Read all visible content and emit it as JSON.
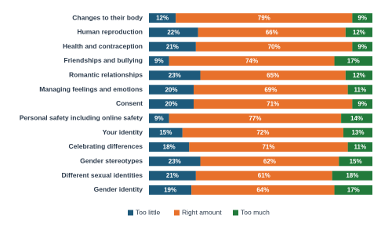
{
  "chart_data": {
    "type": "stacked-barh",
    "categories": [
      "Changes to their body",
      "Human reproduction",
      "Health and contraception",
      "Friendships and bullying",
      "Romantic relationships",
      "Managing feelings and emotions",
      "Consent",
      "Personal safety including online safety",
      "Your identity",
      "Celebrating differences",
      "Gender stereotypes",
      "Different sexual identities",
      "Gender identity"
    ],
    "series": [
      {
        "name": "Too little",
        "color": "#1e5a7b",
        "values": [
          12,
          22,
          21,
          9,
          23,
          20,
          20,
          9,
          15,
          18,
          23,
          21,
          19
        ],
        "value_labels": [
          "12%",
          "22%",
          "21%",
          "9%",
          "23%",
          "20%",
          "20%",
          "9%",
          "15%",
          "18%",
          "23%",
          "21%",
          "19%"
        ]
      },
      {
        "name": "Right amount",
        "color": "#e8712b",
        "values": [
          79,
          66,
          70,
          74,
          65,
          69,
          71,
          77,
          72,
          71,
          62,
          61,
          64
        ],
        "value_labels": [
          "79%",
          "66%",
          "70%",
          "74%",
          "65%",
          "69%",
          "71%",
          "77%",
          "72%",
          "71%",
          "62%",
          "61%",
          "64%"
        ]
      },
      {
        "name": "Too much",
        "color": "#227a3b",
        "values": [
          9,
          12,
          9,
          17,
          12,
          11,
          9,
          14,
          13,
          11,
          15,
          18,
          17
        ],
        "value_labels": [
          "9%",
          "12%",
          "9%",
          "17%",
          "12%",
          "11%",
          "9%",
          "14%",
          "13%",
          "11%",
          "15%",
          "18%",
          "17%"
        ]
      }
    ],
    "xlim": [
      0,
      100
    ],
    "legend": "bottom"
  }
}
